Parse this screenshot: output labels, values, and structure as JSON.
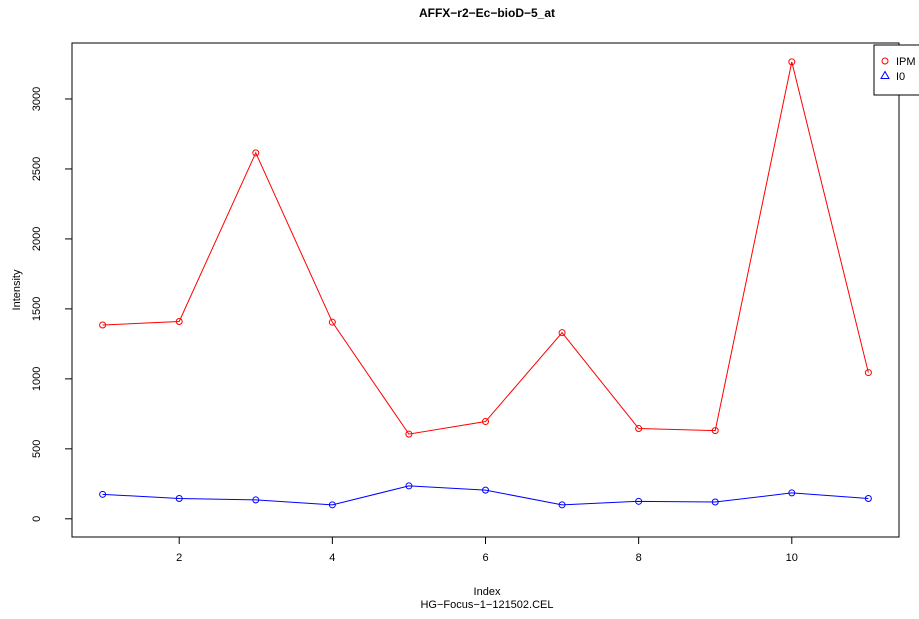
{
  "chart_data": {
    "type": "line",
    "title": "AFFX−r2−Ec−bioD−5_at",
    "xlabel": "Index",
    "subtitle": "HG−Focus−1−121502.CEL",
    "ylabel": "Intensity",
    "xlim": [
      0.6,
      11.4
    ],
    "ylim": [
      -130,
      3400
    ],
    "x_ticks": [
      2,
      4,
      6,
      8,
      10
    ],
    "y_ticks": [
      0,
      500,
      1000,
      1500,
      2000,
      2500,
      3000
    ],
    "x": [
      1,
      2,
      3,
      4,
      5,
      6,
      7,
      8,
      9,
      10,
      11
    ],
    "series": [
      {
        "name": "IPM",
        "color": "#ff0000",
        "marker": "circle",
        "values": [
          1385,
          1410,
          2615,
          1405,
          605,
          695,
          1330,
          645,
          630,
          3265,
          1045
        ]
      },
      {
        "name": "I0",
        "color": "#0000ff",
        "marker": "circle",
        "legend_marker": "triangle",
        "values": [
          175,
          145,
          135,
          100,
          235,
          205,
          100,
          125,
          120,
          185,
          145
        ]
      }
    ],
    "grid": false,
    "legend_position": "top-right"
  }
}
